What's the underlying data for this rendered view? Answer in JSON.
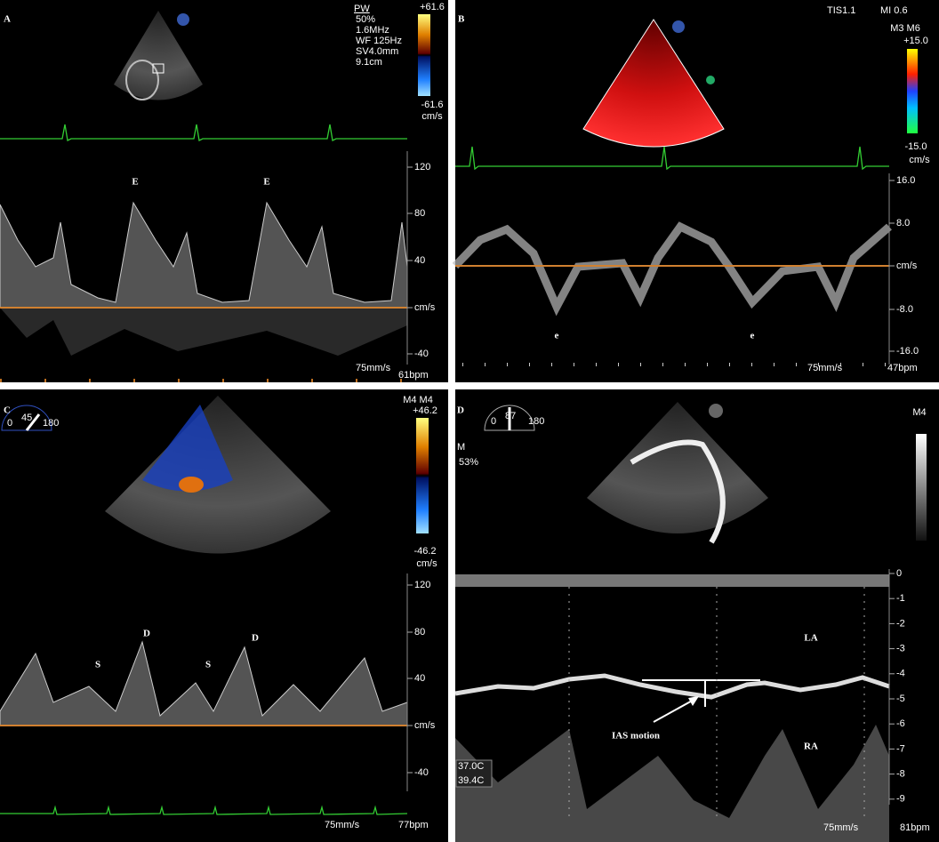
{
  "panels": [
    {
      "label": "A",
      "settings": [
        "PW",
        "50%",
        "1.6MHz",
        "WF 125Hz",
        "SV4.0mm",
        "9.1cm"
      ],
      "colorbar": [
        "+61.6",
        "-61.6",
        "cm/s"
      ],
      "scale": [
        "120",
        "80",
        "40",
        "cm/s",
        "-40"
      ],
      "annotations": [
        "E",
        "E"
      ],
      "footer": [
        "75mm/s",
        "61bpm"
      ]
    },
    {
      "label": "B",
      "settings": [
        "TIS1.1",
        "MI 0.6"
      ],
      "colorbar": [
        "M3 M6",
        "+15.0",
        "-15.0",
        "cm/s"
      ],
      "scale": [
        "16.0",
        "8.0",
        "cm/s",
        "-8.0",
        "-16.0"
      ],
      "annotations": [
        "e",
        "e"
      ],
      "footer": [
        "75mm/s",
        "47bpm"
      ]
    },
    {
      "label": "C",
      "settings": [
        "0",
        "45",
        "180"
      ],
      "colorbar": [
        "M4 M4",
        "+46.2",
        "-46.2",
        "cm/s"
      ],
      "scale": [
        "120",
        "80",
        "40",
        "cm/s",
        "-40"
      ],
      "annotations": [
        "S",
        "D",
        "S",
        "D"
      ],
      "footer": [
        "75mm/s",
        "77bpm"
      ]
    },
    {
      "label": "D",
      "settings": [
        "0",
        "87",
        "180",
        "M",
        "53%"
      ],
      "colorbar": [
        "M4"
      ],
      "scale": [
        "0",
        "-1",
        "-2",
        "-3",
        "-4",
        "-5",
        "-6",
        "-7",
        "-8",
        "-9"
      ],
      "annotations": [
        "LA",
        "RA",
        "IAS motion"
      ],
      "temperatures": [
        "37.0C",
        "39.4C"
      ],
      "footer": [
        "75mm/s",
        "81bpm"
      ]
    }
  ]
}
